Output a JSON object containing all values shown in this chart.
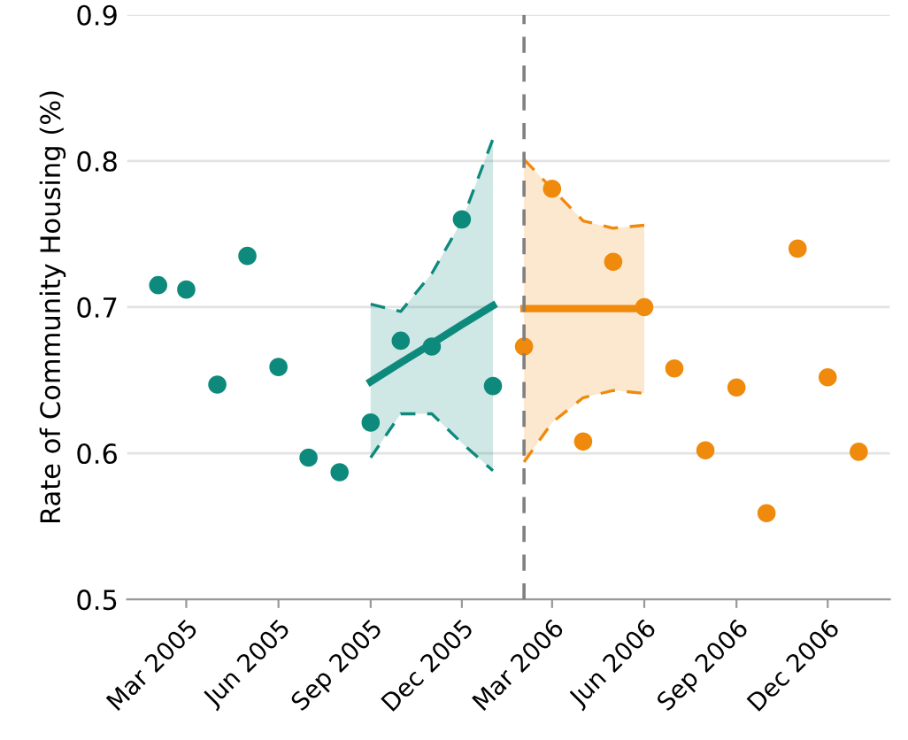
{
  "chart_data": {
    "type": "scatter",
    "ylabel": "Rate of Community Housing (%)",
    "xlim": [
      "2005-01",
      "2007-02"
    ],
    "ylim": [
      0.5,
      0.9
    ],
    "yticks": [
      0.5,
      0.6,
      0.7,
      0.8,
      0.9
    ],
    "xticks": [
      {
        "value": "2005-03",
        "label": "Mar 2005"
      },
      {
        "value": "2005-06",
        "label": "Jun 2005"
      },
      {
        "value": "2005-09",
        "label": "Sep 2005"
      },
      {
        "value": "2005-12",
        "label": "Dec 2005"
      },
      {
        "value": "2006-03",
        "label": "Mar 2006"
      },
      {
        "value": "2006-06",
        "label": "Jun 2006"
      },
      {
        "value": "2006-09",
        "label": "Sep 2006"
      },
      {
        "value": "2006-12",
        "label": "Dec 2006"
      }
    ],
    "grid": "y",
    "marker": "circle",
    "ref_lines": [
      {
        "axis": "x",
        "value": "2006-02",
        "color": "#808080",
        "line_style": "dashed"
      }
    ],
    "series": [
      {
        "color": "#0e8a7d",
        "x": [
          "2005-02",
          "2005-03",
          "2005-04",
          "2005-05",
          "2005-06",
          "2005-07",
          "2005-08",
          "2005-09",
          "2005-10",
          "2005-11",
          "2005-12",
          "2006-01"
        ],
        "values": [
          0.715,
          0.712,
          0.647,
          0.735,
          0.659,
          0.597,
          0.587,
          0.621,
          0.677,
          0.673,
          0.76,
          0.646
        ]
      },
      {
        "color": "#ef8a0c",
        "x": [
          "2006-02",
          "2006-03",
          "2006-04",
          "2006-05",
          "2006-06",
          "2006-07",
          "2006-08",
          "2006-09",
          "2006-10",
          "2006-11",
          "2006-12",
          "2007-01"
        ],
        "values": [
          0.673,
          0.781,
          0.608,
          0.731,
          0.7,
          0.658,
          0.602,
          0.645,
          0.559,
          0.74,
          0.652,
          0.601
        ]
      },
      {
        "type": "line",
        "marker": "none",
        "line_style": "solid",
        "color": "#0e8a7d",
        "x": [
          "2005-09",
          "2005-10",
          "2005-11",
          "2005-12",
          "2006-01"
        ],
        "values": [
          0.649,
          0.662,
          0.675,
          0.688,
          0.701
        ],
        "lower": [
          0.597,
          0.627,
          0.627,
          0.607,
          0.588
        ],
        "upper": [
          0.702,
          0.697,
          0.723,
          0.759,
          0.815
        ]
      },
      {
        "type": "line",
        "marker": "none",
        "line_style": "solid",
        "color": "#ef8a0c",
        "x": [
          "2006-02",
          "2006-03",
          "2006-04",
          "2006-05",
          "2006-06"
        ],
        "values": [
          0.699,
          0.699,
          0.699,
          0.699,
          0.699
        ],
        "lower": [
          0.594,
          0.621,
          0.638,
          0.643,
          0.641
        ],
        "upper": [
          0.801,
          0.781,
          0.759,
          0.754,
          0.756
        ]
      },
      {
        "type": "line",
        "marker": "none",
        "line_style": "dashed",
        "color": "#0e8a7d",
        "x": [
          "2005-09",
          "2005-10",
          "2005-11",
          "2005-12",
          "2006-01"
        ],
        "values": [
          0.597,
          0.627,
          0.627,
          0.607,
          0.588
        ]
      },
      {
        "type": "line",
        "marker": "none",
        "line_style": "dashed",
        "color": "#0e8a7d",
        "x": [
          "2005-09",
          "2005-10",
          "2005-11",
          "2005-12",
          "2006-01"
        ],
        "values": [
          0.702,
          0.697,
          0.723,
          0.759,
          0.815
        ]
      },
      {
        "type": "line",
        "marker": "none",
        "line_style": "dashed",
        "color": "#ef8a0c",
        "x": [
          "2006-02",
          "2006-03",
          "2006-04",
          "2006-05",
          "2006-06"
        ],
        "values": [
          0.594,
          0.621,
          0.638,
          0.643,
          0.641
        ]
      },
      {
        "type": "line",
        "marker": "none",
        "line_style": "dashed",
        "color": "#ef8a0c",
        "x": [
          "2006-02",
          "2006-03",
          "2006-04",
          "2006-05",
          "2006-06"
        ],
        "values": [
          0.801,
          0.781,
          0.759,
          0.754,
          0.756
        ]
      }
    ]
  }
}
